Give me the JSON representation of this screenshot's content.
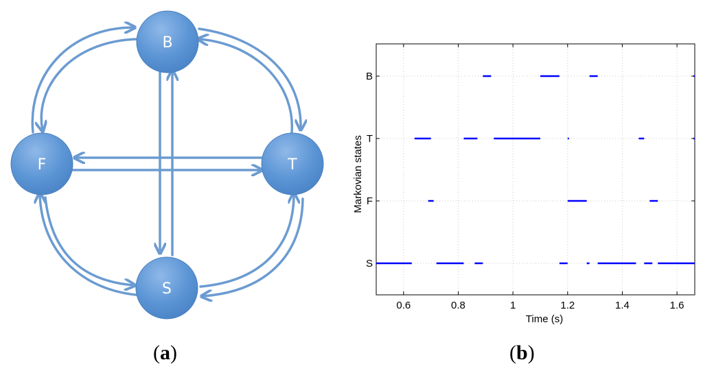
{
  "diagram": {
    "nodes": [
      {
        "id": "B",
        "label": "B"
      },
      {
        "id": "F",
        "label": "F"
      },
      {
        "id": "T",
        "label": "T"
      },
      {
        "id": "S",
        "label": "S"
      }
    ],
    "colors": {
      "node_fill": "#5b95d5",
      "node_stroke": "#4a7fbd",
      "arrow": "#6b9bd1"
    },
    "caption": {
      "open": "(",
      "letter": "a",
      "close": ")"
    }
  },
  "chart_data": {
    "type": "timeline",
    "xlabel": "Time (s)",
    "ylabel": "Markovian states",
    "xlim": [
      0.5,
      1.665
    ],
    "xticks": [
      "0.6",
      "0.8",
      "1",
      "1.2",
      "1.4",
      "1.6"
    ],
    "xtick_values": [
      0.6,
      0.8,
      1.0,
      1.2,
      1.4,
      1.6
    ],
    "categories": [
      "B",
      "T",
      "F",
      "S"
    ],
    "grid": true,
    "color": "#0000ff",
    "segments": {
      "B": [
        [
          0.89,
          0.92
        ],
        [
          1.1,
          1.17
        ],
        [
          1.28,
          1.31
        ],
        [
          1.66,
          1.665
        ]
      ],
      "T": [
        [
          0.64,
          0.7
        ],
        [
          0.82,
          0.87
        ],
        [
          0.93,
          1.1
        ],
        [
          1.2,
          1.205
        ],
        [
          1.46,
          1.48
        ],
        [
          1.66,
          1.665
        ]
      ],
      "F": [
        [
          0.69,
          0.71
        ],
        [
          1.2,
          1.27
        ],
        [
          1.5,
          1.53
        ]
      ],
      "S": [
        [
          0.5,
          0.63
        ],
        [
          0.72,
          0.82
        ],
        [
          0.86,
          0.89
        ],
        [
          1.17,
          1.2
        ],
        [
          1.27,
          1.28
        ],
        [
          1.31,
          1.45
        ],
        [
          1.48,
          1.51
        ],
        [
          1.53,
          1.665
        ]
      ]
    },
    "caption": {
      "open": "(",
      "letter": "b",
      "close": ")"
    }
  }
}
